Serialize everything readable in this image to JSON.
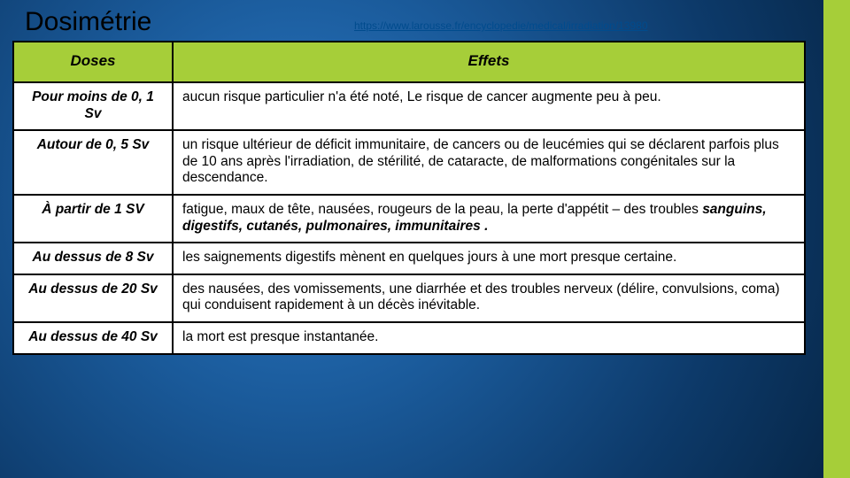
{
  "title": "Dosimétrie",
  "link": "https://www.larousse.fr/encyclopedie/medical/irradiation/13980",
  "headers": {
    "doses": "Doses",
    "effets": "Effets"
  },
  "rows": [
    {
      "dose": "Pour moins de 0, 1 Sv",
      "eff": [
        {
          "t": "aucun risque particulier n'a été noté, Le risque de cancer augmente peu à peu.",
          "b": false
        }
      ]
    },
    {
      "dose": "Autour de 0, 5 Sv",
      "eff": [
        {
          "t": "un risque ultérieur de déficit immunitaire, de cancers ou de leucémies qui se déclarent parfois plus de 10 ans après l'irradiation, de stérilité, de cataracte, de malformations congénitales sur la descendance.",
          "b": false
        }
      ]
    },
    {
      "dose": "À partir de 1 SV",
      "eff": [
        {
          "t": "fatigue, maux de tête, nausées, rougeurs de la peau, la perte d'appétit – des troubles ",
          "b": false
        },
        {
          "t": "sanguins, digestifs, cutanés, pulmonaires, immunitaires .",
          "b": true
        }
      ]
    },
    {
      "dose": "Au dessus de 8 Sv",
      "eff": [
        {
          "t": "les saignements digestifs mènent en quelques jours à une mort presque certaine.",
          "b": false
        }
      ]
    },
    {
      "dose": "Au dessus de 20 Sv",
      "eff": [
        {
          "t": "des nausées, des vomissements, une diarrhée et des troubles nerveux (délire, convulsions, coma) qui conduisent rapidement à un décès inévitable.",
          "b": false
        }
      ]
    },
    {
      "dose": "Au dessus de 40 Sv",
      "eff": [
        {
          "t": "la mort est presque instantanée.",
          "b": false
        }
      ]
    }
  ],
  "colors": {
    "accent": "#a6ce39",
    "bg_gradient": [
      "#2a78c4",
      "#1a5a9a",
      "#0d3a6a",
      "#062545"
    ],
    "table_bg": "#ffffff",
    "border": "#000000",
    "link": "#004b8d"
  }
}
